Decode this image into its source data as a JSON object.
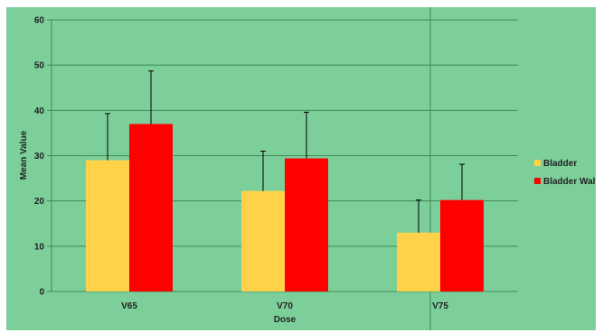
{
  "chart_data": {
    "type": "bar",
    "categories": [
      "V65",
      "V70",
      "V75"
    ],
    "series": [
      {
        "name": "Bladder",
        "values": [
          29,
          22.2,
          13
        ],
        "errors": [
          10.3,
          8.8,
          7.2
        ],
        "color": "#FFD24A"
      },
      {
        "name": "Bladder Wall",
        "values": [
          37,
          29.4,
          20.2
        ],
        "errors": [
          11.7,
          10.2,
          7.9
        ],
        "color": "#FF0000"
      }
    ],
    "xlabel": "Dose",
    "ylabel": "Mean Value",
    "ylim": [
      0,
      60
    ],
    "yticks": [
      "0",
      "10",
      "20",
      "30",
      "40",
      "50",
      "60"
    ],
    "grid": true,
    "legend_position": "right",
    "background_color": "#7DCF9A",
    "gridline_color": "#3E8A57"
  }
}
